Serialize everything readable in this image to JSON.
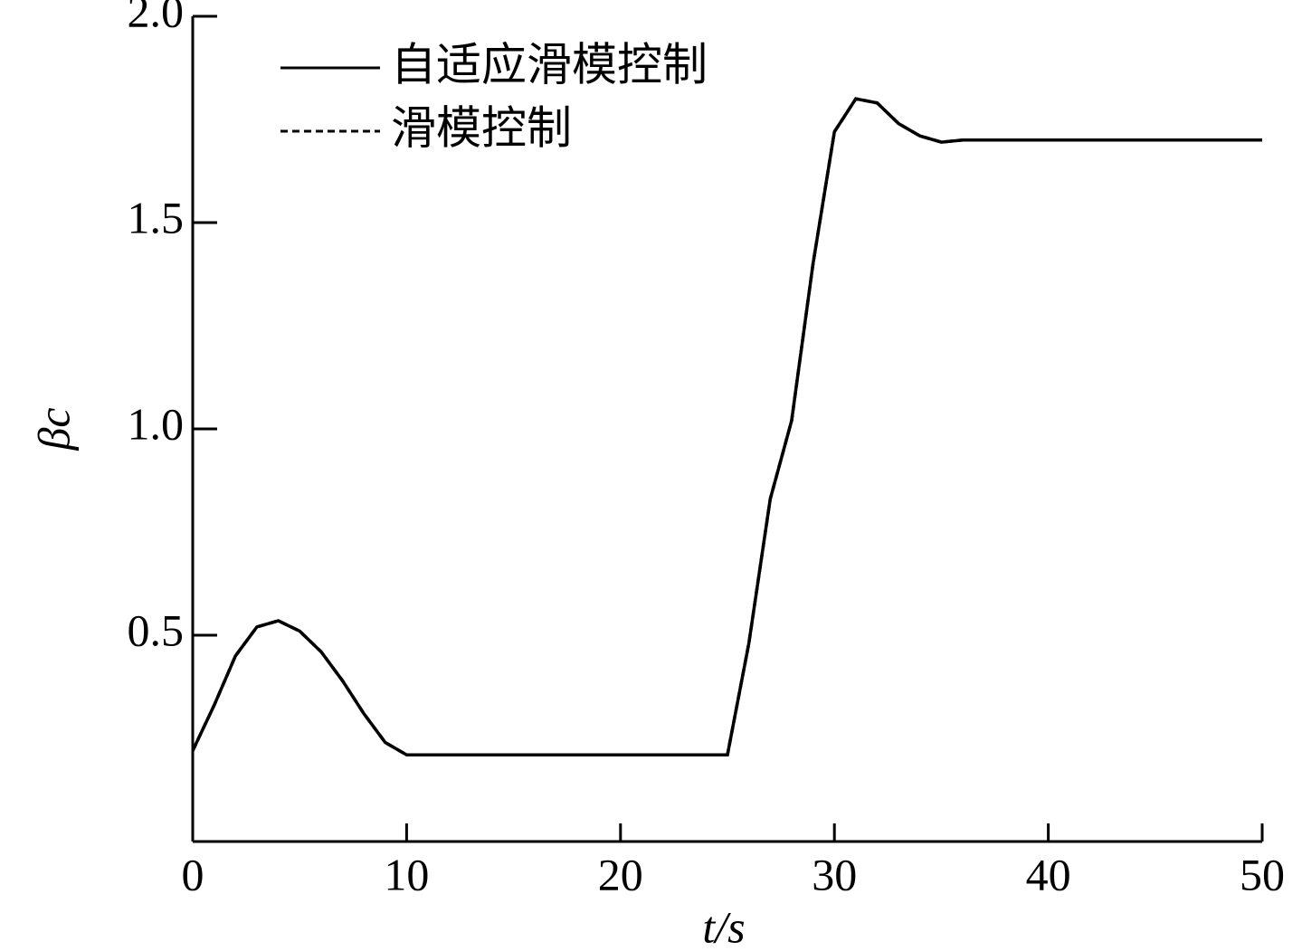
{
  "chart_data": {
    "type": "line",
    "xlabel": "t/s",
    "ylabel": "βc",
    "x": [
      0,
      1,
      2,
      3,
      4,
      5,
      6,
      7,
      8,
      9,
      10,
      11,
      12,
      13,
      14,
      15,
      16,
      17,
      18,
      19,
      20,
      21,
      22,
      23,
      24,
      25,
      26,
      27,
      28,
      29,
      30,
      31,
      32,
      33,
      34,
      35,
      36,
      37,
      38,
      39,
      40,
      41,
      42,
      43,
      44,
      45,
      46,
      47,
      48,
      49,
      50
    ],
    "series": [
      {
        "name": "自适应滑模控制",
        "color": "#000000",
        "dash": "solid",
        "values": [
          0.22,
          0.33,
          0.45,
          0.52,
          0.535,
          0.51,
          0.46,
          0.39,
          0.31,
          0.24,
          0.21,
          0.21,
          0.21,
          0.21,
          0.21,
          0.21,
          0.21,
          0.21,
          0.21,
          0.21,
          0.21,
          0.21,
          0.21,
          0.21,
          0.21,
          0.21,
          0.48,
          0.83,
          1.02,
          1.4,
          1.72,
          1.8,
          1.79,
          1.74,
          1.71,
          1.695,
          1.7,
          1.7,
          1.7,
          1.7,
          1.7,
          1.7,
          1.7,
          1.7,
          1.7,
          1.7,
          1.7,
          1.7,
          1.7,
          1.7,
          1.7
        ]
      },
      {
        "name": "滑模控制",
        "color": "#000000",
        "dash": "dashed",
        "values": [
          0.22,
          0.33,
          0.45,
          0.52,
          0.535,
          0.51,
          0.46,
          0.39,
          0.31,
          0.24,
          0.21,
          0.21,
          0.21,
          0.21,
          0.21,
          0.21,
          0.21,
          0.21,
          0.21,
          0.21,
          0.21,
          0.21,
          0.21,
          0.21,
          0.21,
          0.21,
          0.48,
          0.83,
          1.02,
          1.4,
          1.72,
          1.8,
          1.79,
          1.74,
          1.71,
          1.695,
          1.7,
          1.7,
          1.7,
          1.7,
          1.7,
          1.7,
          1.7,
          1.7,
          1.7,
          1.7,
          1.7,
          1.7,
          1.7,
          1.7,
          1.7
        ]
      }
    ],
    "xlim": [
      0,
      50
    ],
    "xticks": [
      0,
      10,
      20,
      30,
      40,
      50
    ],
    "ylim": [
      0,
      2
    ],
    "yticks": [
      {
        "value": 0.5,
        "label": "0.5"
      },
      {
        "value": 1,
        "label": "1.0"
      },
      {
        "value": 1.5,
        "label": "1.5"
      },
      {
        "value": 2,
        "label": "2.0"
      }
    ],
    "legend": "upper left",
    "grid": false
  }
}
